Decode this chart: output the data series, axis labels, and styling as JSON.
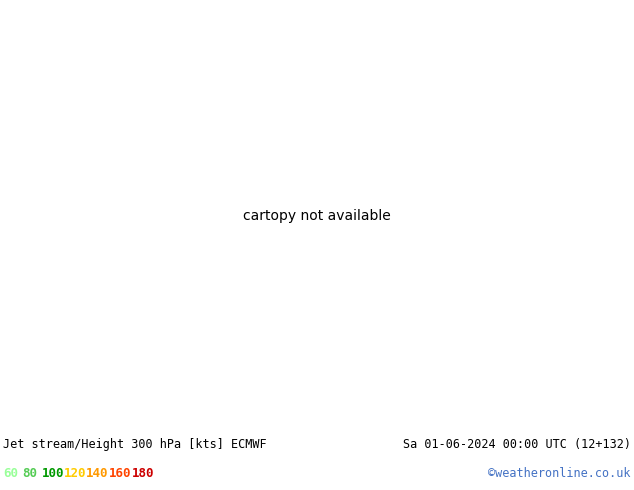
{
  "title_left": "Jet stream/Height 300 hPa [kts] ECMWF",
  "title_right": "Sa 01-06-2024 00:00 UTC (12+132)",
  "credit": "©weatheronline.co.uk",
  "legend_values": [
    "60",
    "80",
    "100",
    "120",
    "140",
    "160",
    "180"
  ],
  "legend_colors": [
    "#99ff99",
    "#55cc55",
    "#009900",
    "#ffcc00",
    "#ff9900",
    "#ff4400",
    "#cc0000"
  ],
  "bg_color_ocean": "#f0f0f0",
  "bg_color_land": "#d8f0c8",
  "bg_color_land_light": "#e8f8e0",
  "bg_color_bottom": "#f0f0f0",
  "fig_width": 6.34,
  "fig_height": 4.9,
  "dpi": 100,
  "contour_color": "#000000",
  "border_color": "#888888",
  "title_font_size": 8.5,
  "credit_color": "#4472c4",
  "legend_font_size": 9,
  "map_extent": [
    -45,
    55,
    25,
    75
  ],
  "contour_linewidth": 1.3,
  "label_fontsize": 7
}
